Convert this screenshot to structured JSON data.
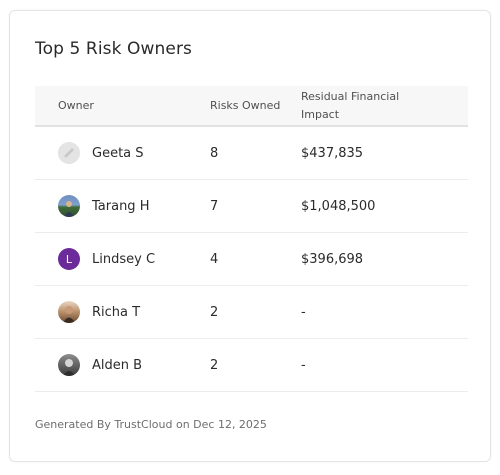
{
  "widget": {
    "title": "Top 5 Risk Owners",
    "footer": "Generated By TrustCloud on Dec 12, 2025"
  },
  "table": {
    "headers": {
      "owner": "Owner",
      "risks": "Risks Owned",
      "impact": "Residual Financial Impact"
    },
    "rows": [
      {
        "name": "Geeta S",
        "risks": "8",
        "impact": "$437,835",
        "avatar": "default-avatar-icon"
      },
      {
        "name": "Tarang H",
        "risks": "7",
        "impact": "$1,048,500",
        "avatar": "photo-avatar"
      },
      {
        "name": "Lindsey C",
        "risks": "4",
        "impact": "$396,698",
        "avatar_initial": "L",
        "avatar_color": "#6c2b9a"
      },
      {
        "name": "Richa T",
        "risks": "2",
        "impact": "-",
        "avatar": "photo-avatar"
      },
      {
        "name": "Alden B",
        "risks": "2",
        "impact": "-",
        "avatar": "photo-avatar"
      }
    ]
  }
}
